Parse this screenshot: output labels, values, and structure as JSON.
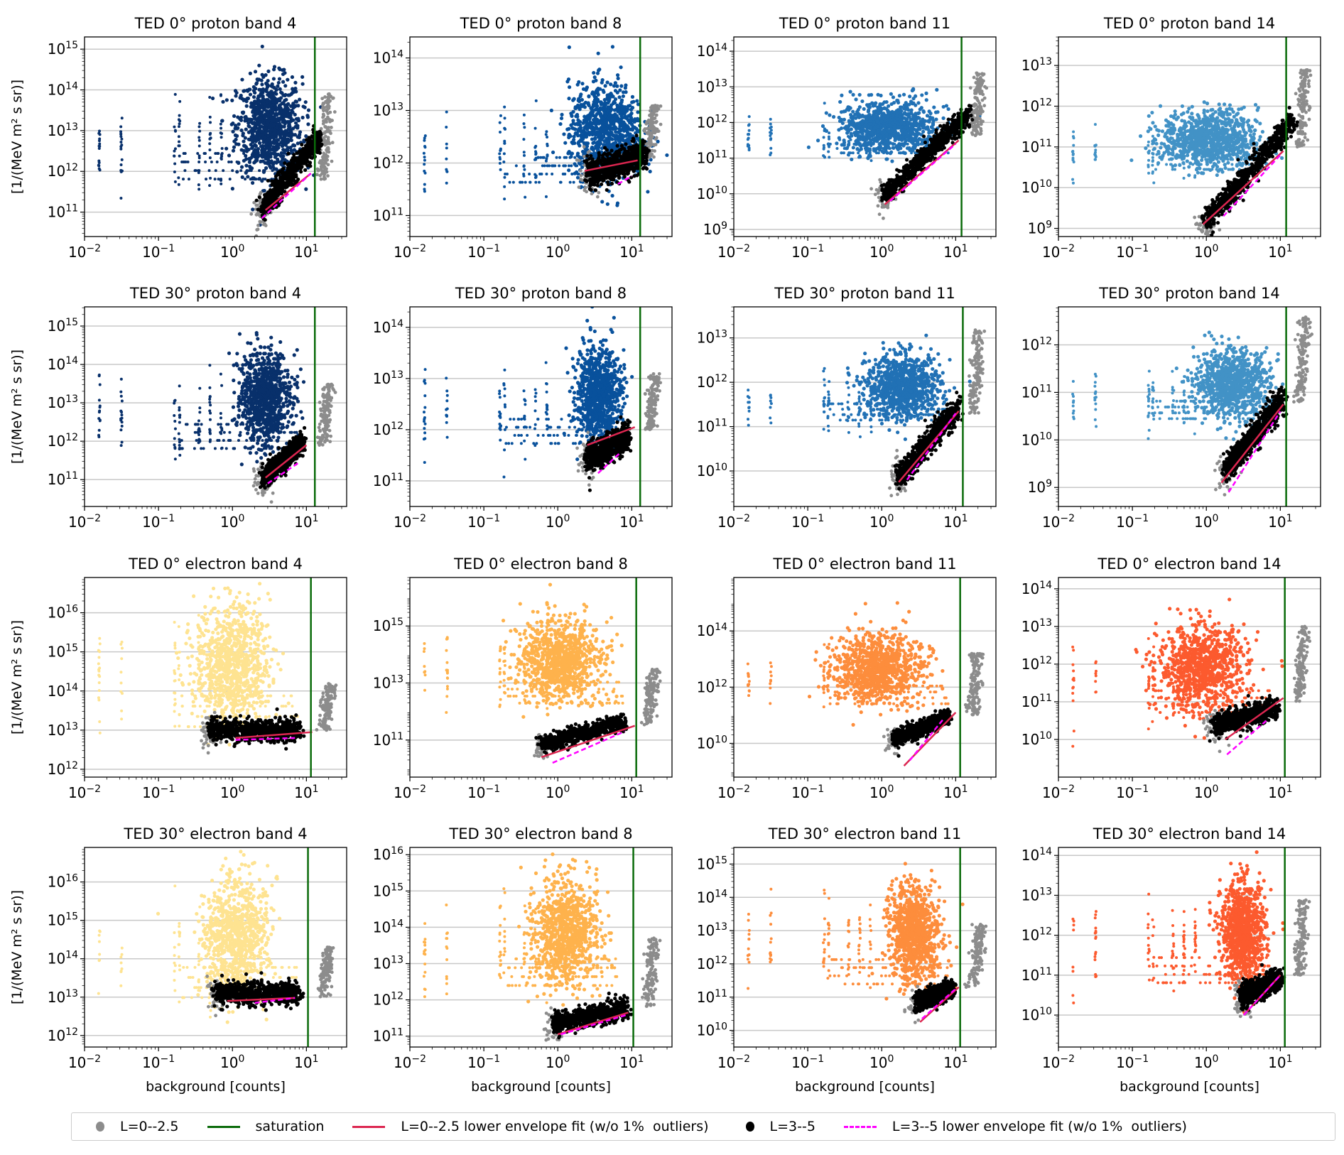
{
  "chart_data": {
    "type": "scatter",
    "figure": "TED flux vs background counts (4x4 grid)",
    "xlabel": "background [counts]",
    "ylabel": "[1/(MeV m² s sr)]",
    "xscale": "log",
    "yscale": "log",
    "xlim": [
      0.01,
      35
    ],
    "xticks": [
      "10^-2",
      "10^-1",
      "10^0",
      "10^1"
    ],
    "grid": "y-major",
    "legend_placement": "bottom-center",
    "legend": [
      {
        "label": "L=0--2.5",
        "kind": "dot",
        "color": "#8c8c8c"
      },
      {
        "label": "saturation",
        "kind": "line",
        "color": "#0a6b0a"
      },
      {
        "label": "L=0--2.5 lower envelope fit (w/o 1%  outliers)",
        "kind": "line",
        "color": "#dc2650"
      },
      {
        "label": "L=3--5",
        "kind": "dot",
        "color": "#000000"
      },
      {
        "label": "L=3--5 lower envelope fit (w/o 1%  outliers)",
        "kind": "dash",
        "color": "#ff00ff"
      }
    ],
    "colors": {
      "gray": "#8c8c8c",
      "black": "#000000",
      "saturation": "#0a6b0a",
      "fit1": "#dc2650",
      "fit2": "#ff00ff",
      "grid": "#c8c8c8"
    },
    "panels": [
      {
        "title": "TED 0° proton band 4",
        "color": "#08306b",
        "ylim_exp": [
          10.4,
          15.3
        ],
        "yticks_exp": [
          11,
          12,
          13,
          14,
          15
        ],
        "saturation": 13,
        "cloud": {
          "cx": 0.5,
          "cy": 13.1,
          "sx": 0.22,
          "sy": 0.6
        },
        "black": {
          "x0": 2.5,
          "y0": 11.0,
          "x1": 15,
          "y1": 12.8
        },
        "gray_tail": {
          "x": 20,
          "y0": 11.8,
          "y1": 13.9
        },
        "fit1": [
          [
            2.8,
            11.05
          ],
          [
            11.5,
            11.95
          ]
        ],
        "fit2": [
          [
            2.5,
            10.85
          ],
          [
            11.5,
            11.95
          ]
        ]
      },
      {
        "title": "TED 0° proton band 8",
        "color": "#08519c",
        "ylim_exp": [
          10.6,
          14.4
        ],
        "yticks_exp": [
          11,
          12,
          13,
          14
        ],
        "saturation": 13,
        "cloud": {
          "cx": 0.65,
          "cy": 12.6,
          "sx": 0.25,
          "sy": 0.45
        },
        "black": {
          "x0": 2.5,
          "y0": 11.75,
          "x1": 15,
          "y1": 12.1
        },
        "gray_tail": {
          "x": 20,
          "y0": 12.1,
          "y1": 13.1
        },
        "fit1": [
          [
            2.3,
            11.85
          ],
          [
            12,
            12.05
          ]
        ],
        "fit2": [
          [
            6.5,
            11.6
          ],
          [
            10,
            11.75
          ]
        ]
      },
      {
        "title": "TED 0° proton band 11",
        "color": "#2171b5",
        "ylim_exp": [
          8.8,
          14.4
        ],
        "yticks_exp": [
          9,
          10,
          11,
          12,
          13,
          14
        ],
        "saturation": 12,
        "cloud": {
          "cx": 0.1,
          "cy": 11.9,
          "sx": 0.32,
          "sy": 0.35
        },
        "black": {
          "x0": 1.1,
          "y0": 9.9,
          "x1": 15,
          "y1": 12.2
        },
        "gray_tail": {
          "x": 22,
          "y0": 11.6,
          "y1": 13.4
        },
        "fit1": [
          [
            1.1,
            9.7
          ],
          [
            11,
            11.5
          ]
        ],
        "fit2": [
          [
            1.3,
            9.8
          ],
          [
            10,
            11.4
          ]
        ]
      },
      {
        "title": "TED 0° proton band 14",
        "color": "#4292c6",
        "ylim_exp": [
          8.8,
          13.7
        ],
        "yticks_exp": [
          9,
          10,
          11,
          12,
          13
        ],
        "saturation": 12,
        "cloud": {
          "cx": 0.05,
          "cy": 11.2,
          "sx": 0.32,
          "sy": 0.35
        },
        "black": {
          "x0": 1.0,
          "y0": 9.1,
          "x1": 15,
          "y1": 11.6
        },
        "gray_tail": {
          "x": 22,
          "y0": 11.0,
          "y1": 12.9
        },
        "fit1": [
          [
            0.9,
            9.1
          ],
          [
            11,
            10.9
          ]
        ],
        "fit2": [
          [
            1.7,
            9.3
          ],
          [
            10,
            10.8
          ]
        ]
      },
      {
        "title": "TED 30° proton band 4",
        "color": "#08306b",
        "ylim_exp": [
          10.3,
          15.5
        ],
        "yticks_exp": [
          11,
          12,
          13,
          14,
          15
        ],
        "saturation": 13,
        "cloud": {
          "cx": 0.45,
          "cy": 13.1,
          "sx": 0.17,
          "sy": 0.6
        },
        "black": {
          "x0": 2.6,
          "y0": 11.0,
          "x1": 9,
          "y1": 11.9
        },
        "gray_tail": {
          "x": 20,
          "y0": 11.9,
          "y1": 13.5
        },
        "fit1": [
          [
            2.8,
            11.05
          ],
          [
            10,
            11.9
          ]
        ],
        "fit2": [
          [
            3.0,
            10.9
          ],
          [
            8,
            11.45
          ]
        ]
      },
      {
        "title": "TED 30° proton band 8",
        "color": "#08519c",
        "ylim_exp": [
          10.5,
          14.4
        ],
        "yticks_exp": [
          11,
          12,
          13,
          14
        ],
        "saturation": 13,
        "cloud": {
          "cx": 0.55,
          "cy": 12.7,
          "sx": 0.15,
          "sy": 0.45
        },
        "black": {
          "x0": 2.5,
          "y0": 11.4,
          "x1": 9,
          "y1": 11.8
        },
        "gray_tail": {
          "x": 21,
          "y0": 12.0,
          "y1": 13.1
        },
        "fit1": [
          [
            2.5,
            11.7
          ],
          [
            11,
            12.05
          ]
        ],
        "fit2": [
          [
            3.5,
            11.15
          ],
          [
            7,
            11.55
          ]
        ]
      },
      {
        "title": "TED 30° proton band 11",
        "color": "#2171b5",
        "ylim_exp": [
          9.2,
          13.7
        ],
        "yticks_exp": [
          10,
          11,
          12,
          13
        ],
        "saturation": 12.5,
        "cloud": {
          "cx": 0.3,
          "cy": 11.9,
          "sx": 0.25,
          "sy": 0.35
        },
        "black": {
          "x0": 1.7,
          "y0": 9.8,
          "x1": 11,
          "y1": 11.4
        },
        "gray_tail": {
          "x": 21,
          "y0": 11.3,
          "y1": 13.2
        },
        "fit1": [
          [
            1.7,
            9.75
          ],
          [
            11,
            11.35
          ]
        ],
        "fit2": [
          [
            2.2,
            9.8
          ],
          [
            10,
            11.3
          ]
        ]
      },
      {
        "title": "TED 30° proton band 14",
        "color": "#4292c6",
        "ylim_exp": [
          8.6,
          12.8
        ],
        "yticks_exp": [
          9,
          10,
          11,
          12
        ],
        "saturation": 12,
        "cloud": {
          "cx": 0.35,
          "cy": 11.2,
          "sx": 0.25,
          "sy": 0.35
        },
        "black": {
          "x0": 1.8,
          "y0": 9.3,
          "x1": 11,
          "y1": 10.8
        },
        "gray_tail": {
          "x": 22,
          "y0": 10.8,
          "y1": 12.6
        },
        "fit1": [
          [
            1.6,
            9.1
          ],
          [
            11,
            10.75
          ]
        ],
        "fit2": [
          [
            2.0,
            8.9
          ],
          [
            10,
            10.6
          ]
        ]
      },
      {
        "title": "TED 0° electron band 4",
        "color": "#fee391",
        "ylim_exp": [
          11.8,
          16.9
        ],
        "yticks_exp": [
          12,
          13,
          14,
          15,
          16
        ],
        "saturation": 11.5,
        "cloud": {
          "cx": 0.0,
          "cy": 14.7,
          "sx": 0.25,
          "sy": 0.75
        },
        "black": {
          "x0": 0.5,
          "y0": 12.95,
          "x1": 8,
          "y1": 12.95
        },
        "gray_tail": {
          "x": 21,
          "y0": 13.0,
          "y1": 14.2
        },
        "fit1": [
          [
            1.1,
            12.8
          ],
          [
            12,
            12.95
          ]
        ],
        "fit2": [
          [
            1.1,
            12.75
          ],
          [
            7,
            12.8
          ]
        ]
      },
      {
        "title": "TED 0° electron band 8",
        "color": "#feb24c",
        "ylim_exp": [
          9.7,
          16.7
        ],
        "yticks_exp": [
          11,
          13,
          15
        ],
        "saturation": 11.5,
        "cloud": {
          "cx": 0.05,
          "cy": 13.8,
          "sx": 0.27,
          "sy": 0.7
        },
        "black": {
          "x0": 0.6,
          "y0": 10.8,
          "x1": 8,
          "y1": 11.6
        },
        "gray_tail": {
          "x": 20,
          "y0": 11.5,
          "y1": 13.5
        },
        "fit1": [
          [
            0.6,
            10.4
          ],
          [
            11,
            11.5
          ]
        ],
        "fit2": [
          [
            0.85,
            10.2
          ],
          [
            8,
            11.3
          ]
        ]
      },
      {
        "title": "TED 0° electron band 11",
        "color": "#fd8d3c",
        "ylim_exp": [
          8.8,
          15.9
        ],
        "yticks_exp": [
          10,
          12,
          14
        ],
        "saturation": 11.5,
        "cloud": {
          "cx": -0.05,
          "cy": 12.7,
          "sx": 0.3,
          "sy": 0.6
        },
        "black": {
          "x0": 1.5,
          "y0": 10.1,
          "x1": 8,
          "y1": 10.9
        },
        "gray_tail": {
          "x": 20,
          "y0": 11.0,
          "y1": 13.2
        },
        "fit1": [
          [
            2.0,
            9.2
          ],
          [
            10,
            11.1
          ]
        ],
        "fit2": [
          [
            2.4,
            9.4
          ],
          [
            7,
            10.9
          ]
        ]
      },
      {
        "title": "TED 0° electron band 14",
        "color": "#fc5a2e",
        "ylim_exp": [
          9.0,
          14.3
        ],
        "yticks_exp": [
          10,
          11,
          12,
          13,
          14
        ],
        "saturation": 11.5,
        "cloud": {
          "cx": -0.05,
          "cy": 11.9,
          "sx": 0.3,
          "sy": 0.55
        },
        "black": {
          "x0": 1.3,
          "y0": 10.3,
          "x1": 9,
          "y1": 10.8
        },
        "gray_tail": {
          "x": 21,
          "y0": 11.0,
          "y1": 13.0
        },
        "fit1": [
          [
            1.8,
            10.0
          ],
          [
            11,
            11.1
          ]
        ],
        "fit2": [
          [
            1.9,
            9.6
          ],
          [
            6.5,
            10.5
          ]
        ]
      },
      {
        "title": "TED 30° electron band 4",
        "color": "#fee391",
        "ylim_exp": [
          11.7,
          16.9
        ],
        "yticks_exp": [
          12,
          13,
          14,
          15,
          16
        ],
        "saturation": 10.5,
        "cloud": {
          "cx": 0.05,
          "cy": 14.6,
          "sx": 0.22,
          "sy": 0.75
        },
        "black": {
          "x0": 0.6,
          "y0": 13.05,
          "x1": 8,
          "y1": 13.05
        },
        "gray_tail": {
          "x": 20,
          "y0": 13.0,
          "y1": 14.3
        },
        "fit1": [
          [
            0.85,
            12.9
          ],
          [
            7,
            12.98
          ]
        ],
        "fit2": [
          [
            2.0,
            12.85
          ],
          [
            7,
            12.98
          ]
        ]
      },
      {
        "title": "TED 30° electron band 8",
        "color": "#feb24c",
        "ylim_exp": [
          10.7,
          16.2
        ],
        "yticks_exp": [
          11,
          12,
          13,
          14,
          15,
          16
        ],
        "saturation": 10.5,
        "cloud": {
          "cx": 0.1,
          "cy": 13.9,
          "sx": 0.22,
          "sy": 0.7
        },
        "black": {
          "x0": 0.9,
          "y0": 11.3,
          "x1": 8.5,
          "y1": 11.7
        },
        "gray_tail": {
          "x": 20,
          "y0": 11.8,
          "y1": 13.7
        },
        "fit1": [
          [
            1.0,
            11.05
          ],
          [
            9,
            11.65
          ]
        ],
        "fit2": [
          [
            1.1,
            11.05
          ],
          [
            9,
            11.6
          ]
        ]
      },
      {
        "title": "TED 30° electron band 11",
        "color": "#fd8d3c",
        "ylim_exp": [
          9.5,
          15.5
        ],
        "yticks_exp": [
          10,
          11,
          12,
          13,
          14,
          15
        ],
        "saturation": 11.5,
        "cloud": {
          "cx": 0.45,
          "cy": 12.9,
          "sx": 0.17,
          "sy": 0.7
        },
        "black": {
          "x0": 3.0,
          "y0": 10.8,
          "x1": 9,
          "y1": 11.2
        },
        "gray_tail": {
          "x": 21,
          "y0": 11.3,
          "y1": 13.2
        },
        "fit1": [
          [
            3.3,
            10.25
          ],
          [
            11,
            11.3
          ]
        ],
        "fit2": [
          [
            3.5,
            10.35
          ],
          [
            10,
            11.25
          ]
        ]
      },
      {
        "title": "TED 30° electron band 14",
        "color": "#fc5a2e",
        "ylim_exp": [
          9.2,
          14.2
        ],
        "yticks_exp": [
          10,
          11,
          12,
          13,
          14
        ],
        "saturation": 11.5,
        "cloud": {
          "cx": 0.5,
          "cy": 12.1,
          "sx": 0.15,
          "sy": 0.6
        },
        "black": {
          "x0": 3.0,
          "y0": 10.4,
          "x1": 10,
          "y1": 10.9
        },
        "gray_tail": {
          "x": 21,
          "y0": 11.0,
          "y1": 12.9
        },
        "fit1": [
          [
            3.2,
            10.0
          ],
          [
            10,
            11.0
          ]
        ],
        "fit2": [
          [
            3.2,
            10.0
          ],
          [
            10,
            11.0
          ]
        ]
      }
    ]
  }
}
